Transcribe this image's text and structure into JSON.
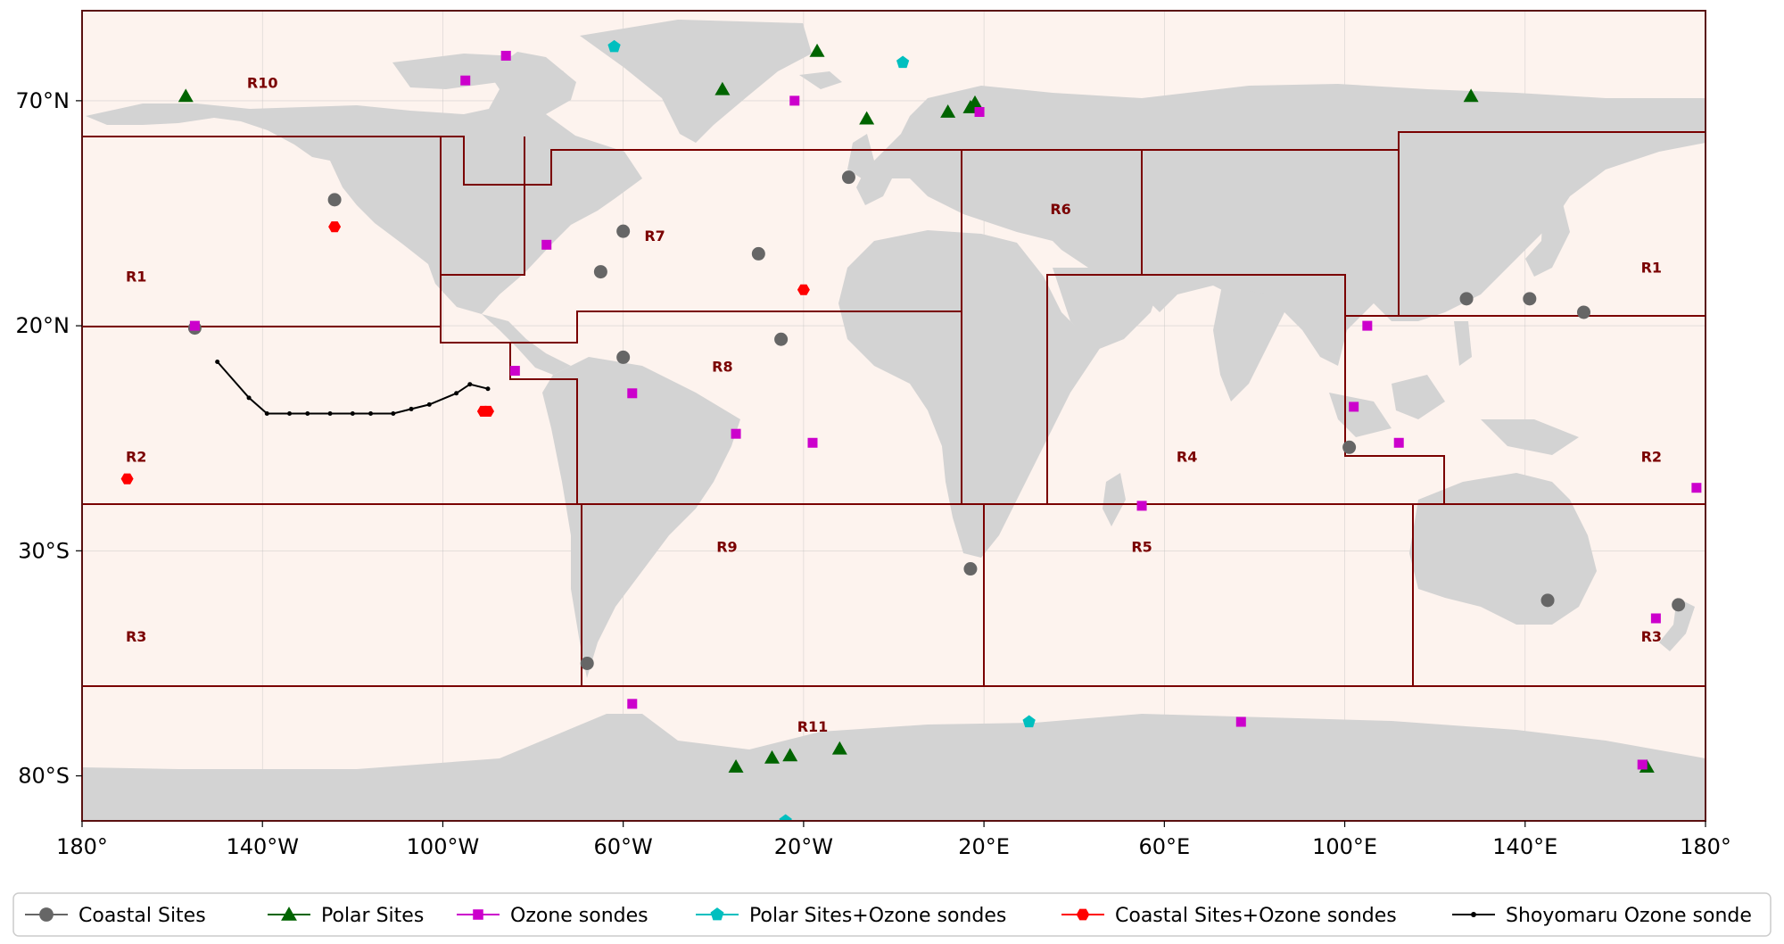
{
  "axis": {
    "x_ticks": [
      {
        "lon": -180,
        "label": "180°"
      },
      {
        "lon": -140,
        "label": "140°W"
      },
      {
        "lon": -100,
        "label": "100°W"
      },
      {
        "lon": -60,
        "label": "60°W"
      },
      {
        "lon": -20,
        "label": "20°W"
      },
      {
        "lon": 20,
        "label": "20°E"
      },
      {
        "lon": 60,
        "label": "60°E"
      },
      {
        "lon": 100,
        "label": "100°E"
      },
      {
        "lon": 140,
        "label": "140°E"
      },
      {
        "lon": 180,
        "label": "180°"
      }
    ],
    "y_ticks": [
      {
        "lat": 70,
        "label": "70°N"
      },
      {
        "lat": 20,
        "label": "20°N"
      },
      {
        "lat": -30,
        "label": "30°S"
      },
      {
        "lat": -80,
        "label": "80°S"
      }
    ],
    "xlim": [
      -180,
      180
    ],
    "ylim": [
      -90,
      90
    ],
    "grid": true
  },
  "colors": {
    "ocean": "#fdf3ee",
    "land": "#d3d3d3",
    "region_line": "#7a0000",
    "coastal": "#666666",
    "polar": "#006400",
    "ozone": "#cc00cc",
    "polar_ozone": "#00bfbf",
    "coastal_ozone": "#ff0000",
    "ship": "#000000"
  },
  "regions": [
    {
      "label": "R1",
      "lon": -168,
      "lat": 31
    },
    {
      "label": "R1",
      "lon": 168,
      "lat": 33
    },
    {
      "label": "R2",
      "lon": -168,
      "lat": -9
    },
    {
      "label": "R2",
      "lon": 168,
      "lat": -9
    },
    {
      "label": "R3",
      "lon": -168,
      "lat": -49
    },
    {
      "label": "R3",
      "lon": 168,
      "lat": -49
    },
    {
      "label": "R4",
      "lon": 65,
      "lat": -9
    },
    {
      "label": "R5",
      "lon": 55,
      "lat": -29
    },
    {
      "label": "R6",
      "lon": 37,
      "lat": 46
    },
    {
      "label": "R7",
      "lon": -53,
      "lat": 40
    },
    {
      "label": "R8",
      "lon": -38,
      "lat": 11
    },
    {
      "label": "R9",
      "lon": -37,
      "lat": -29
    },
    {
      "label": "R10",
      "lon": -140,
      "lat": 74
    },
    {
      "label": "R11",
      "lon": -18,
      "lat": -69
    }
  ],
  "legend": [
    {
      "key": "coastal",
      "label": "Coastal Sites"
    },
    {
      "key": "polar",
      "label": "Polar Sites"
    },
    {
      "key": "ozone",
      "label": "Ozone sondes"
    },
    {
      "key": "polar_ozone",
      "label": "Polar Sites+Ozone sondes"
    },
    {
      "key": "coastal_ozone",
      "label": "Coastal Sites+Ozone sondes"
    },
    {
      "key": "ship",
      "label": "Shoyomaru Ozone sonde"
    }
  ],
  "chart_data": {
    "type": "scatter",
    "series": [
      {
        "name": "Coastal Sites",
        "key": "coastal",
        "points": [
          [
            -124,
            48
          ],
          [
            -155,
            19.5
          ],
          [
            -60,
            41
          ],
          [
            -65,
            32
          ],
          [
            -30,
            36
          ],
          [
            -10,
            53
          ],
          [
            -60,
            13
          ],
          [
            -25,
            17
          ],
          [
            101,
            -7
          ],
          [
            127,
            26
          ],
          [
            141,
            26
          ],
          [
            153,
            23
          ],
          [
            17,
            -34
          ],
          [
            145,
            -41
          ],
          [
            174,
            -42
          ],
          [
            -68,
            -55
          ]
        ]
      },
      {
        "name": "Polar Sites",
        "key": "polar",
        "points": [
          [
            -157,
            71
          ],
          [
            -38,
            72.5
          ],
          [
            -17,
            81
          ],
          [
            -6,
            66
          ],
          [
            12,
            67.5
          ],
          [
            17,
            68.5
          ],
          [
            18,
            69.5
          ],
          [
            128,
            71
          ],
          [
            -35,
            -78
          ],
          [
            -27,
            -76
          ],
          [
            -12,
            -74
          ],
          [
            -23,
            -75.5
          ],
          [
            167,
            -78
          ]
        ]
      },
      {
        "name": "Ozone sondes",
        "key": "ozone",
        "points": [
          [
            -95,
            74.5
          ],
          [
            -86,
            80
          ],
          [
            -22,
            70
          ],
          [
            19,
            67.5
          ],
          [
            -77,
            38
          ],
          [
            -155,
            20
          ],
          [
            -84,
            10
          ],
          [
            -58,
            5
          ],
          [
            -35,
            -4
          ],
          [
            -18,
            -6
          ],
          [
            102,
            2
          ],
          [
            105,
            20
          ],
          [
            112,
            -6
          ],
          [
            55,
            -20
          ],
          [
            178,
            -16
          ],
          [
            166,
            -77.5
          ],
          [
            -58,
            -64
          ],
          [
            77,
            -68
          ],
          [
            169,
            -45
          ]
        ]
      },
      {
        "name": "Polar Sites+Ozone sondes",
        "key": "polar_ozone",
        "points": [
          [
            -62,
            82
          ],
          [
            -24,
            -90
          ],
          [
            30,
            -68
          ],
          [
            2,
            78.5
          ]
        ]
      },
      {
        "name": "Coastal Sites+Ozone sondes",
        "key": "coastal_ozone",
        "points": [
          [
            -124,
            42
          ],
          [
            -170,
            -14
          ],
          [
            -91,
            1
          ],
          [
            -90,
            1
          ],
          [
            -20,
            28
          ]
        ]
      },
      {
        "name": "Shoyomaru Ozone sonde",
        "key": "ship",
        "points": [
          [
            -150,
            12
          ],
          [
            -143,
            4
          ],
          [
            -139,
            0.5
          ],
          [
            -134,
            0.5
          ],
          [
            -130,
            0.5
          ],
          [
            -125,
            0.5
          ],
          [
            -120,
            0.5
          ],
          [
            -116,
            0.5
          ],
          [
            -111,
            0.5
          ],
          [
            -107,
            1.5
          ],
          [
            -103,
            2.5
          ],
          [
            -97,
            5
          ],
          [
            -94,
            7
          ],
          [
            -90,
            6
          ]
        ]
      }
    ]
  }
}
